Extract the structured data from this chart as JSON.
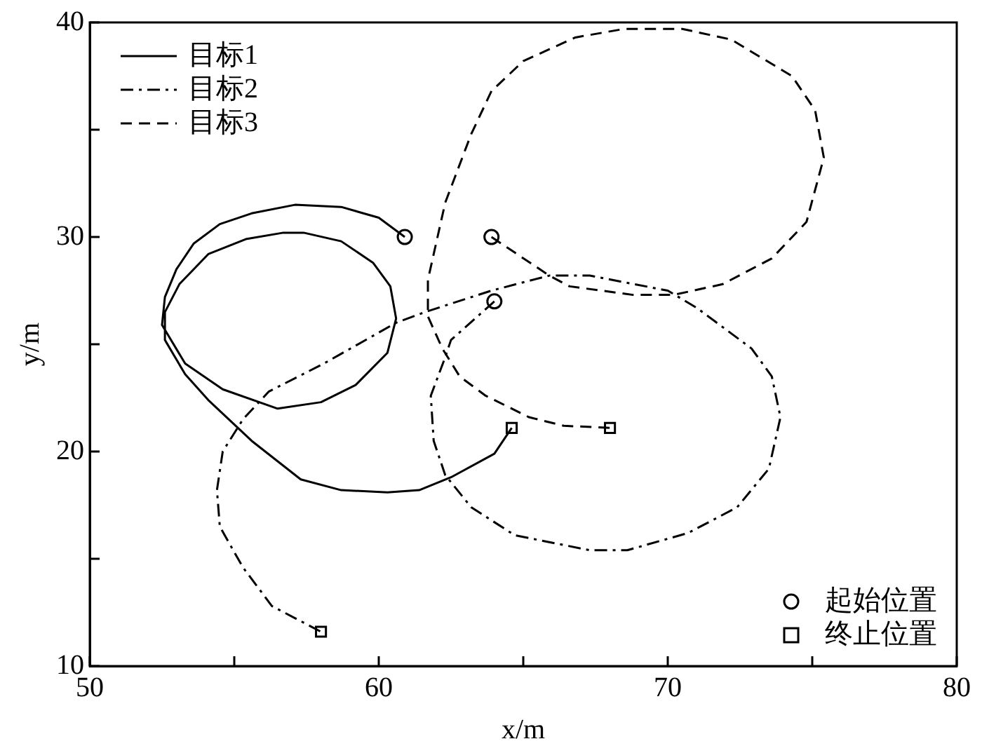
{
  "chart_data": {
    "type": "line",
    "xlabel": "x/m",
    "ylabel": "y/m",
    "xlim": [
      50,
      80
    ],
    "ylim": [
      10,
      40
    ],
    "xticks": [
      50,
      {
        "value": 55,
        "label": null
      },
      60,
      {
        "value": 65,
        "label": null
      },
      70,
      {
        "value": 75,
        "label": null
      },
      80
    ],
    "yticks": [
      10,
      {
        "value": 15,
        "label": null
      },
      20,
      {
        "value": 25,
        "label": null
      },
      30,
      {
        "value": 35,
        "label": null
      },
      40
    ],
    "grid": false,
    "legend": "top left",
    "series": [
      {
        "name": "目标1",
        "color": "#000000",
        "line_style": "solid",
        "x": [
          60.9,
          60.0,
          58.7,
          57.1,
          55.6,
          54.5,
          53.6,
          53.0,
          52.6,
          52.5,
          53.3,
          54.6,
          56.5,
          58.0,
          59.2,
          60.3,
          60.6,
          60.4,
          59.8,
          58.7,
          57.4,
          56.7,
          55.4,
          54.1,
          53.1,
          52.6,
          52.6,
          53.3,
          54.1,
          55.6,
          57.3,
          58.7,
          60.3,
          61.4,
          62.5,
          64.0,
          64.6
        ],
        "values": [
          30.0,
          30.9,
          31.4,
          31.5,
          31.1,
          30.6,
          29.7,
          28.5,
          27.2,
          25.9,
          24.1,
          22.9,
          22.0,
          22.3,
          23.1,
          24.6,
          26.2,
          27.7,
          28.8,
          29.8,
          30.2,
          30.2,
          29.9,
          29.2,
          27.8,
          26.5,
          25.2,
          23.6,
          22.4,
          20.5,
          18.7,
          18.2,
          18.1,
          18.2,
          18.8,
          19.9,
          21.1
        ]
      },
      {
        "name": "目标2",
        "color": "#000000",
        "line_style": "dashdot",
        "x": [
          64.0,
          62.5,
          62.3,
          61.8,
          61.9,
          62.3,
          63.2,
          64.7,
          67.3,
          68.6,
          70.7,
          72.4,
          73.5,
          73.9,
          73.6,
          72.9,
          71.0,
          70.0,
          67.3,
          65.9,
          63.9,
          61.6,
          60.6,
          58.1,
          56.2,
          55.3,
          54.6,
          54.4,
          54.5,
          55.3,
          56.3,
          58.0
        ],
        "values": [
          27.0,
          25.2,
          24.4,
          22.6,
          20.5,
          18.9,
          17.4,
          16.1,
          15.4,
          15.4,
          16.2,
          17.4,
          19.2,
          21.6,
          23.5,
          24.8,
          26.7,
          27.5,
          28.2,
          28.2,
          27.5,
          26.5,
          26.0,
          24.1,
          22.8,
          21.5,
          20.0,
          18.2,
          16.5,
          14.6,
          12.8,
          11.6
        ]
      },
      {
        "name": "目标3",
        "color": "#000000",
        "line_style": "dashed",
        "x": [
          63.9,
          65.9,
          66.6,
          68.8,
          70.2,
          71.9,
          73.6,
          74.8,
          75.4,
          75.1,
          74.3,
          72.2,
          70.5,
          68.5,
          66.8,
          65.0,
          63.9,
          63.2,
          62.3,
          61.7,
          61.7,
          62.2,
          62.8,
          63.7,
          65.2,
          66.4,
          68.0
        ],
        "values": [
          30.0,
          28.2,
          27.7,
          27.3,
          27.3,
          27.8,
          29.0,
          30.7,
          33.7,
          35.9,
          37.5,
          39.2,
          39.7,
          39.7,
          39.3,
          38.2,
          36.8,
          34.8,
          31.6,
          28.0,
          26.3,
          24.8,
          23.5,
          22.6,
          21.6,
          21.2,
          21.1
        ]
      },
      {
        "name": "起始位置",
        "type": "scatter",
        "color": "#000000",
        "marker": "circle",
        "x": [
          60.9,
          64.0,
          63.9
        ],
        "values": [
          30.0,
          27.0,
          30.0
        ]
      },
      {
        "name": "终止位置",
        "type": "scatter",
        "color": "#000000",
        "marker": "square",
        "x": [
          64.6,
          58.0,
          68.0
        ],
        "values": [
          21.1,
          11.6,
          21.1
        ]
      }
    ]
  }
}
